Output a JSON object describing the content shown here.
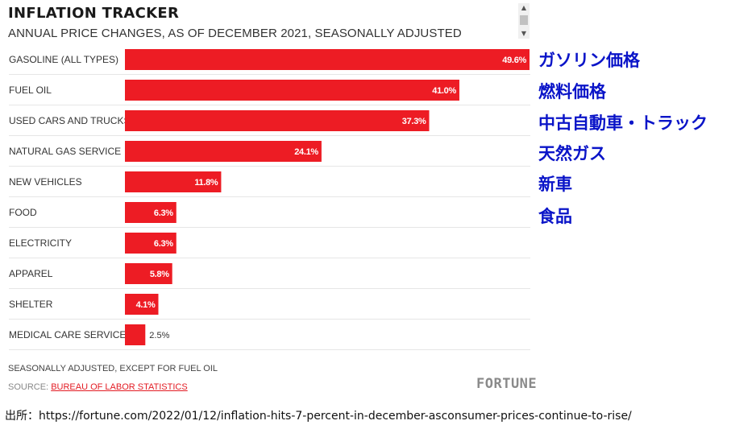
{
  "header": {
    "title": "INFLATION TRACKER",
    "subtitle": "ANNUAL PRICE CHANGES, AS OF DECEMBER 2021, SEASONALLY ADJUSTED"
  },
  "colors": {
    "bar": "#ed1c24",
    "grid": "#e6e6e6",
    "annotation": "#0a14c8"
  },
  "chart_data": {
    "type": "bar",
    "orientation": "horizontal",
    "title": "INFLATION TRACKER",
    "subtitle": "ANNUAL PRICE CHANGES, AS OF DECEMBER 2021, SEASONALLY ADJUSTED",
    "categories": [
      "GASOLINE (ALL TYPES)",
      "FUEL OIL",
      "USED CARS AND TRUCKS",
      "NATURAL GAS SERVICE",
      "NEW VEHICLES",
      "FOOD",
      "ELECTRICITY",
      "APPAREL",
      "SHELTER",
      "MEDICAL CARE SERVICES"
    ],
    "values": [
      49.6,
      41.0,
      37.3,
      24.1,
      11.8,
      6.3,
      6.3,
      5.8,
      4.1,
      2.5
    ],
    "value_labels": [
      "49.6%",
      "41.0%",
      "37.3%",
      "24.1%",
      "11.8%",
      "6.3%",
      "6.3%",
      "5.8%",
      "4.1%",
      "2.5%"
    ],
    "xlim": [
      0,
      49.6
    ],
    "xlabel": "",
    "ylabel": ""
  },
  "annotations_jp": [
    "ガソリン価格",
    "燃料価格",
    "中古自動車・トラック",
    "天然ガス",
    "新車",
    "食品"
  ],
  "footer": {
    "note": "SEASONALLY ADJUSTED, EXCEPT FOR FUEL OIL",
    "source_prefix": "SOURCE: ",
    "source_link": "BUREAU OF LABOR STATISTICS",
    "brand": "FORTUNE"
  },
  "citation": "出所：https://fortune.com/2022/01/12/inflation-hits-7-percent-in-december-asconsumer-prices-continue-to-rise/",
  "scrollbar": {
    "up": "▲",
    "down": "▼"
  }
}
